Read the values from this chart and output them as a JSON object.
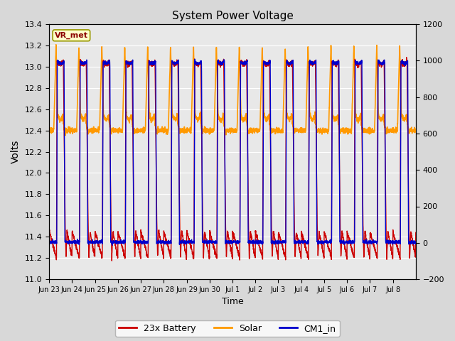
{
  "title": "System Power Voltage",
  "xlabel": "Time",
  "ylabel_left": "Volts",
  "ylim_left": [
    11.0,
    13.4
  ],
  "ylim_right": [
    -200,
    1200
  ],
  "yticks_left": [
    11.0,
    11.2,
    11.4,
    11.6,
    11.8,
    12.0,
    12.2,
    12.4,
    12.6,
    12.8,
    13.0,
    13.2,
    13.4
  ],
  "yticks_right": [
    -200,
    0,
    200,
    400,
    600,
    800,
    1000,
    1200
  ],
  "background_color": "#d8d8d8",
  "plot_bg_color": "#e8e8e8",
  "annotation_text": "VR_met",
  "annotation_bg": "#ffffcc",
  "annotation_border": "#999900",
  "annotation_text_color": "#8b0000",
  "legend_entries": [
    "23x Battery",
    "Solar",
    "CM1_in"
  ],
  "colors": {
    "battery": "#cc0000",
    "solar": "#ff9900",
    "cm1": "#0000cc"
  },
  "x_tick_labels": [
    "Jun 23",
    "Jun 24",
    "Jun 25",
    "Jun 26",
    "Jun 27",
    "Jun 28",
    "Jun 29",
    "Jun 30",
    "Jul 1",
    "Jul 2",
    "Jul 3",
    "Jul 4",
    "Jul 5",
    "Jul 6",
    "Jul 7",
    "Jul 8"
  ],
  "num_days": 16
}
